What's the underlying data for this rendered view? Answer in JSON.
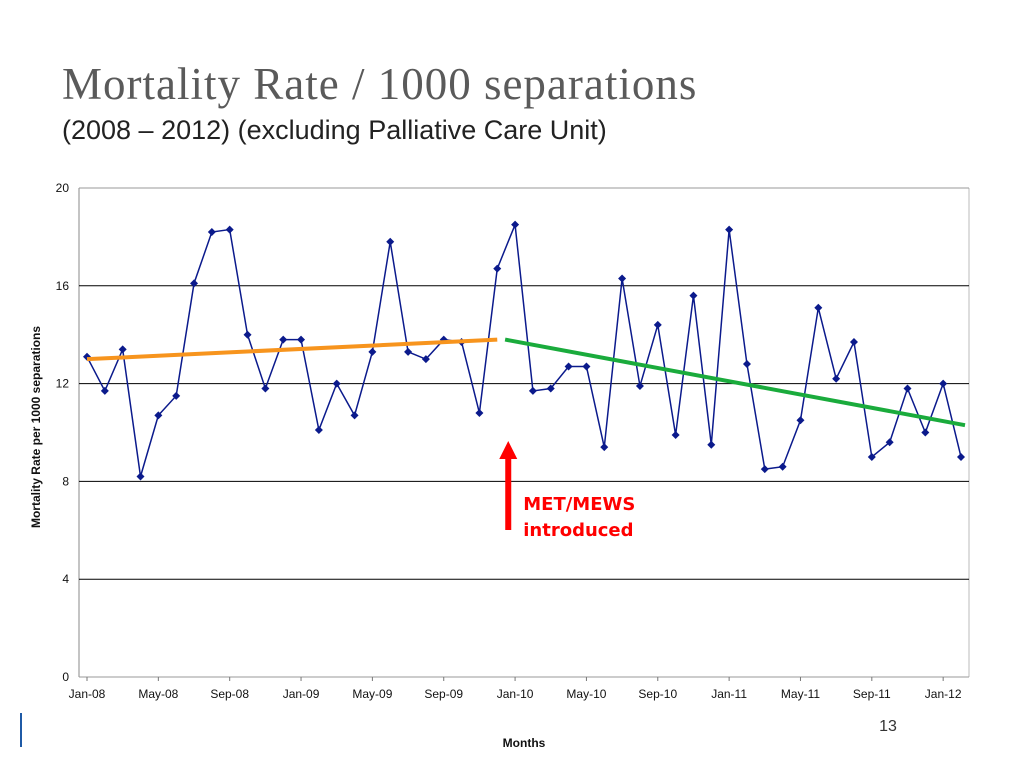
{
  "slide": {
    "title": "Mortality Rate / 1000 separations",
    "subtitle": "(2008 – 2012) (excluding Palliative Care Unit)",
    "page_number": "13"
  },
  "colors": {
    "series": "#0b1a8c",
    "trend_before": "#f7941d",
    "trend_after": "#1aab3c",
    "annotation": "#ff0000",
    "grid": "#000000"
  },
  "chart_data": {
    "type": "line",
    "xlabel": "Months",
    "ylabel": "Mortality Rate per 1000 separations",
    "ylim": [
      0,
      20
    ],
    "yticks": [
      0,
      4,
      8,
      12,
      16,
      20
    ],
    "grid": "horizontal",
    "x_tick_labels": [
      "Jan-08",
      "May-08",
      "Sep-08",
      "Jan-09",
      "May-09",
      "Sep-09",
      "Jan-10",
      "May-10",
      "Sep-10",
      "Jan-11",
      "May-11",
      "Sep-11",
      "Jan-12"
    ],
    "categories": [
      "Jan-08",
      "Feb-08",
      "Mar-08",
      "Apr-08",
      "May-08",
      "Jun-08",
      "Jul-08",
      "Aug-08",
      "Sep-08",
      "Oct-08",
      "Nov-08",
      "Dec-08",
      "Jan-09",
      "Feb-09",
      "Mar-09",
      "Apr-09",
      "May-09",
      "Jun-09",
      "Jul-09",
      "Aug-09",
      "Sep-09",
      "Oct-09",
      "Nov-09",
      "Dec-09",
      "Jan-10",
      "Feb-10",
      "Mar-10",
      "Apr-10",
      "May-10",
      "Jun-10",
      "Jul-10",
      "Aug-10",
      "Sep-10",
      "Oct-10",
      "Nov-10",
      "Dec-10",
      "Jan-11",
      "Feb-11",
      "Mar-11",
      "Apr-11",
      "May-11",
      "Jun-11",
      "Jul-11",
      "Aug-11",
      "Sep-11",
      "Oct-11",
      "Nov-11",
      "Dec-11",
      "Jan-12",
      "Feb-12"
    ],
    "series": [
      {
        "values": [
          13.1,
          11.7,
          13.4,
          8.2,
          10.7,
          11.5,
          16.1,
          18.2,
          18.3,
          14.0,
          11.8,
          13.8,
          13.8,
          10.1,
          12.0,
          10.7,
          13.3,
          17.8,
          13.3,
          13.0,
          13.8,
          13.7,
          10.8,
          16.7,
          18.5,
          11.7,
          11.8,
          12.7,
          12.7,
          9.4,
          16.3,
          11.9,
          14.4,
          9.9,
          15.6,
          9.5,
          18.3,
          12.8,
          8.5,
          8.6,
          10.5,
          15.1,
          12.2,
          13.7,
          9.0,
          9.6,
          11.8,
          10.0,
          12.0,
          9.0
        ]
      }
    ],
    "trend_lines": [
      {
        "from": {
          "x": "Jan-08",
          "y": 13.0
        },
        "to": {
          "x": "Dec-09",
          "y": 13.8
        }
      },
      {
        "from": {
          "x": "Jan-10",
          "y": 13.8
        },
        "to": {
          "x": "Feb-12",
          "y": 10.3
        }
      }
    ],
    "annotations": [
      {
        "lines": [
          "MET/MEWS",
          "introduced"
        ],
        "at_x": "Dec-09",
        "arrow": "up"
      }
    ]
  }
}
